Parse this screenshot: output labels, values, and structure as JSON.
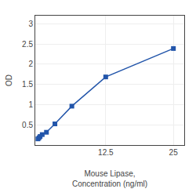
{
  "chart_data": {
    "type": "line",
    "x_label": "Mouse Lipase,\nConcentration (ng/ml)",
    "y_label": "OD",
    "x": [
      0.0,
      0.195,
      0.39,
      0.781,
      1.563,
      3.125,
      6.25,
      12.5,
      25.0
    ],
    "values": [
      0.152,
      0.181,
      0.212,
      0.259,
      0.316,
      0.524,
      0.962,
      1.685,
      2.388
    ],
    "color": "#2255aa",
    "marker": "square",
    "line_style": "solid",
    "xlim": [
      -0.5,
      27
    ],
    "xticks": [
      12.5,
      25
    ],
    "ylim": [
      0,
      3.2
    ],
    "yticks": [
      0.5,
      1,
      1.5,
      2,
      2.5,
      3
    ],
    "grid": true
  }
}
